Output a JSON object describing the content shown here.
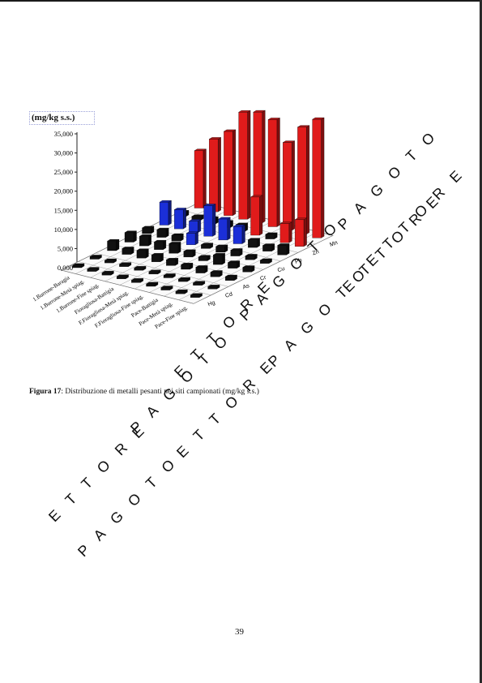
{
  "page": {
    "number": "39"
  },
  "caption": {
    "lead": "Figura 17",
    "text": ": Distribuzione di metalli pesanti nei siti campionati (mg/kg s.s.)"
  },
  "watermark": {
    "text_a": "PAGOTO",
    "text_b": "ETTORE"
  },
  "chart_data": {
    "type": "bar",
    "subtype": "3d-grouped",
    "unit_label": "(mg/kg s.s.)",
    "yticks": [
      "35,000",
      "30,000",
      "25,000",
      "20,000",
      "15,000",
      "10,000",
      "5,000",
      "0,000"
    ],
    "ylim": [
      0,
      35000
    ],
    "sites": [
      "1.Burrone-Baragia",
      "1.Burrone-Metà spiag.",
      "1.Burrone-Fine spiag.",
      "Fioragliosa-Battigia",
      "F.Fioragliosa-Metà spiag.",
      "F.Fioragliosa-Fine spiag.",
      "Pace-Battigia",
      "Pace-Metà spiag.",
      "Pace-Fine spiag."
    ],
    "metals": [
      "Hg",
      "Cd",
      "As",
      "Cr",
      "Cu",
      "Pb",
      "Zn",
      "Mn"
    ],
    "colors": {
      "high": "#e01b1b",
      "mid": "#1b2fd8",
      "low": "#111111"
    },
    "series": [
      {
        "name": "Hg",
        "values": [
          100,
          100,
          100,
          100,
          100,
          100,
          100,
          100,
          100
        ]
      },
      {
        "name": "Cd",
        "values": [
          200,
          150,
          150,
          300,
          150,
          150,
          300,
          200,
          200
        ]
      },
      {
        "name": "As",
        "values": [
          2500,
          1500,
          2000,
          1800,
          1500,
          1200,
          1500,
          1200,
          1000
        ]
      },
      {
        "name": "Cr",
        "values": [
          2500,
          2500,
          2000,
          2500,
          1500,
          1000,
          2500,
          1500,
          1200
        ]
      },
      {
        "name": "Cu",
        "values": [
          1500,
          2000,
          1500,
          3000,
          1000,
          1500,
          1500,
          1000,
          800
        ]
      },
      {
        "name": "Pb",
        "values": [
          6000,
          5000,
          3000,
          8000,
          5500,
          4500,
          2000,
          1500,
          2500
        ]
      },
      {
        "name": "Zn",
        "values": [
          1200,
          1000,
          1500,
          1500,
          1800,
          10000,
          1200,
          5000,
          7000
        ]
      },
      {
        "name": "Mn",
        "values": [
          15000,
          19000,
          22000,
          28000,
          29000,
          28000,
          23000,
          28000,
          31000
        ]
      }
    ]
  }
}
